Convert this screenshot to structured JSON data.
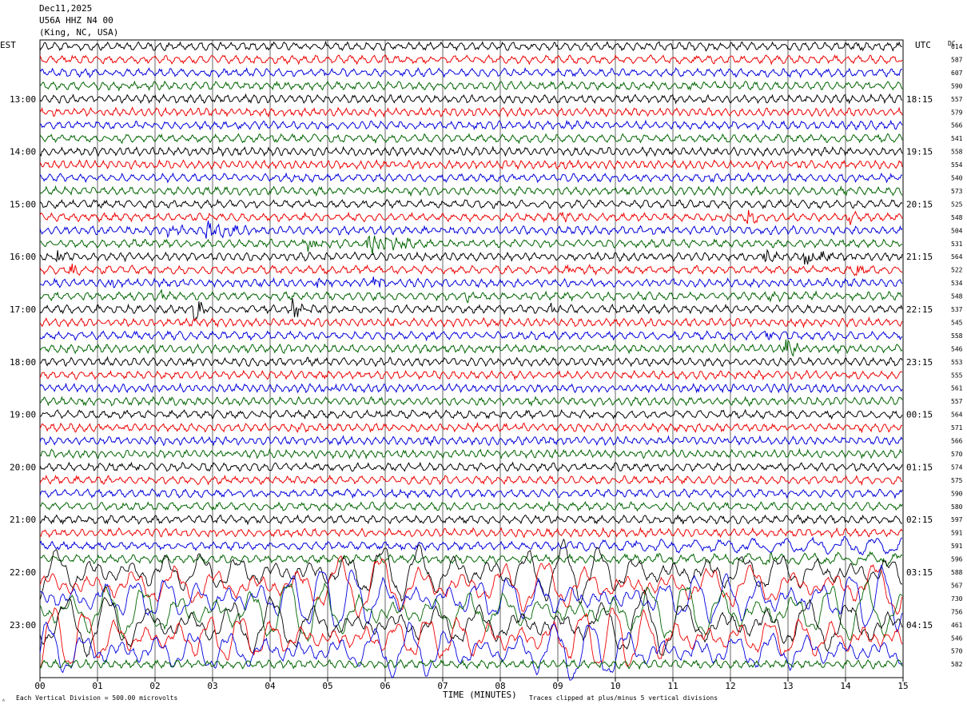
{
  "header": {
    "date": "Dec11,2025",
    "station": "U56A HHZ N4 00",
    "location": "(King, NC, USA)"
  },
  "chart_data": {
    "type": "line",
    "title": "U56A HHZ N4 00",
    "left_axis_label": "EST",
    "right_axis_label": "UTC",
    "dc_label": "DC",
    "xlabel": "TIME (MINUTES)",
    "x_ticks": [
      "00",
      "01",
      "02",
      "03",
      "04",
      "05",
      "06",
      "07",
      "08",
      "09",
      "10",
      "11",
      "12",
      "13",
      "14",
      "15"
    ],
    "xlim": [
      0,
      15
    ],
    "est_hour_labels": [
      "13:00",
      "14:00",
      "15:00",
      "16:00",
      "17:00",
      "18:00",
      "19:00",
      "20:00",
      "21:00",
      "22:00",
      "23:00"
    ],
    "utc_hour_labels": [
      "18:15",
      "19:15",
      "20:15",
      "21:15",
      "22:15",
      "23:15",
      "00:15",
      "01:15",
      "02:15",
      "03:15",
      "04:15"
    ],
    "trace_colors": [
      "#000000",
      "#ee0000",
      "#0000dd",
      "#006400"
    ],
    "dc_offsets": [
      "614",
      "587",
      "607",
      "590",
      "557",
      "579",
      "566",
      "541",
      "558",
      "554",
      "540",
      "573",
      "525",
      "548",
      "504",
      "531",
      "564",
      "522",
      "534",
      "548",
      "537",
      "545",
      "558",
      "546",
      "553",
      "555",
      "561",
      "557",
      "564",
      "571",
      "566",
      "570",
      "574",
      "575",
      "590",
      "580",
      "597",
      "591",
      "591",
      "596",
      "588",
      "567",
      "730",
      "756",
      "461",
      "546",
      "570",
      "582"
    ],
    "footer_left": "Each Vertical Division =  500.00 microvolts",
    "footer_right": "Traces clipped at plus/minus 5 vertical divisions",
    "corner_mark": "ᴬ"
  }
}
